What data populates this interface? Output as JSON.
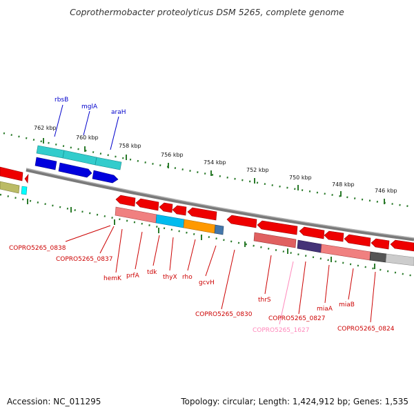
{
  "title": "Coprothermobacter proteolyticus DSM 5265, complete genome",
  "accession": "Accession: NC_011295",
  "stats": "Topology: circular; Length: 1,424,912 bp; Genes: 1,535",
  "colors": {
    "forward_label": "#0000cc",
    "reverse_label": "#cc0000",
    "pseudo_label": "#ff88bb",
    "backbone": "#888888",
    "tick": "#2a7a2a"
  },
  "scale_labels": [
    "762 kbp",
    "760 kbp",
    "758 kbp",
    "756 kbp",
    "754 kbp",
    "752 kbp",
    "750 kbp",
    "748 kbp",
    "746 kbp"
  ],
  "forward_genes": [
    "rbsB",
    "mglA",
    "araH"
  ],
  "reverse_genes": [
    "COPRO5265_0838",
    "COPRO5265_0837",
    "hemK",
    "prfA",
    "tdk",
    "thyX",
    "rho",
    "gcvH",
    "COPRO5265_0830",
    "thrS",
    "COPRO5265_0827",
    "COPRO5265_1627",
    "miaA",
    "miaB",
    "COPRO5265_0824"
  ]
}
